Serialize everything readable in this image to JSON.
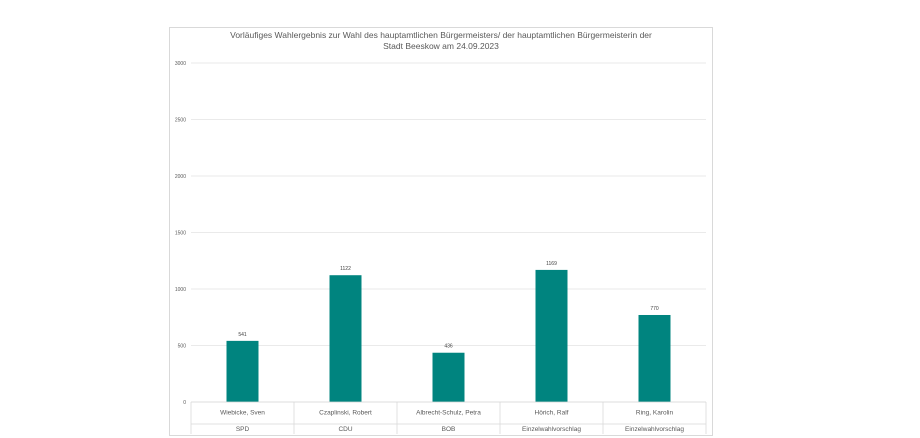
{
  "chart_data": {
    "type": "bar",
    "title_lines": [
      "Vorläufiges Wahlergebnis zur Wahl des hauptamtlichen Bürgermeisters/ der hauptamtlichen Bürgermeisterin der",
      "Stadt Beeskow am 24.09.2023"
    ],
    "categories": [
      "Wiebicke, Sven",
      "Czaplinski, Robert",
      "Albrecht-Schulz, Petra",
      "Hörich, Ralf",
      "Ring, Karolin"
    ],
    "groups": [
      "SPD",
      "CDU",
      "BOB",
      "Einzelwahlvorschlag",
      "Einzelwahlvorschlag"
    ],
    "values": [
      541,
      1122,
      436,
      1169,
      770
    ],
    "yticks": [
      0,
      500,
      1000,
      1500,
      2000,
      2500,
      3000
    ],
    "ylim": [
      0,
      3000
    ],
    "bar_color": "#00847f",
    "grid": true,
    "legend": "none"
  }
}
